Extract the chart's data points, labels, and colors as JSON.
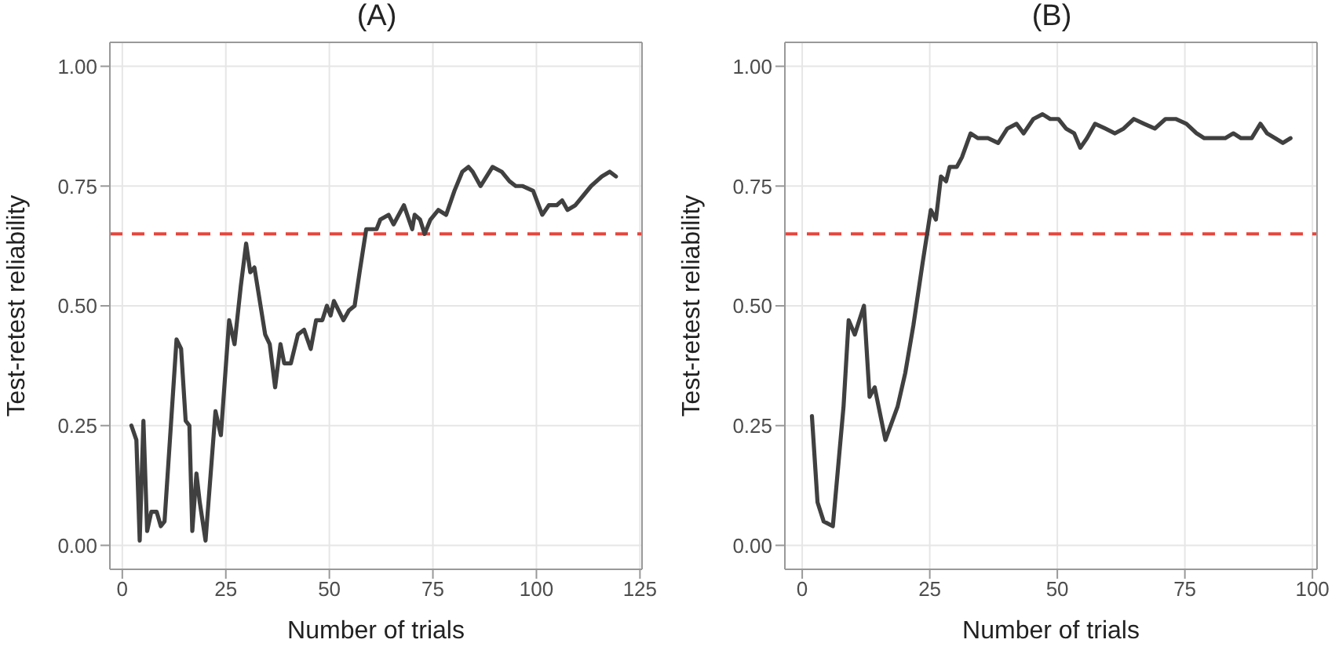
{
  "chart_data": [
    {
      "type": "line",
      "title": "(A)",
      "xlabel": "Number of trials",
      "ylabel": "Test-retest reliability",
      "xlim": [
        -3,
        125.5
      ],
      "ylim": [
        -0.05,
        1.05
      ],
      "xticks": [
        0,
        25,
        50,
        75,
        100,
        125
      ],
      "yticks": [
        {
          "value": 0,
          "label": "0.00"
        },
        {
          "value": 0.25,
          "label": "0.25"
        },
        {
          "value": 0.5,
          "label": "0.50"
        },
        {
          "value": 0.75,
          "label": "0.75"
        },
        {
          "value": 1,
          "label": "1.00"
        }
      ],
      "grid": true,
      "marker": "none",
      "line_style": "solid",
      "ref_lines": [
        {
          "axis": "y",
          "value": 0.65,
          "color": "#e8453c",
          "line_style": "dashed"
        }
      ],
      "series": [
        {
          "color": "#404040",
          "x": [
            2.2,
            3.4,
            4.2,
            5.1,
            6,
            7,
            8.3,
            9.3,
            10.2,
            13.1,
            14.2,
            15.3,
            16.2,
            16.9,
            17.9,
            18.7,
            20.1,
            22.5,
            23.8,
            25.8,
            27.1,
            28.6,
            29.9,
            30.9,
            31.9,
            34.5,
            35.6,
            36.9,
            38.2,
            39.1,
            40.7,
            42.4,
            43.9,
            45.5,
            46.8,
            48.3,
            49.4,
            50.3,
            51.1,
            53.4,
            54.7,
            56.1,
            57.3,
            58.9,
            61.4,
            62.3,
            64.3,
            65.5,
            68,
            70,
            70.6,
            71.9,
            73,
            74.4,
            76.3,
            78.2,
            80.2,
            82.1,
            83.6,
            84.6,
            86.5,
            89.4,
            91.6,
            93.5,
            95,
            96.7,
            99.2,
            101.4,
            103,
            104.9,
            106.2,
            107.5,
            109.4,
            111.3,
            113.2,
            115.8,
            117.7,
            119.2
          ],
          "values": [
            0.25,
            0.22,
            0.01,
            0.26,
            0.03,
            0.07,
            0.07,
            0.04,
            0.05,
            0.43,
            0.41,
            0.26,
            0.25,
            0.03,
            0.15,
            0.09,
            0.01,
            0.28,
            0.23,
            0.47,
            0.42,
            0.54,
            0.63,
            0.57,
            0.58,
            0.44,
            0.42,
            0.33,
            0.42,
            0.38,
            0.38,
            0.44,
            0.45,
            0.41,
            0.47,
            0.47,
            0.5,
            0.48,
            0.51,
            0.47,
            0.49,
            0.5,
            0.57,
            0.66,
            0.66,
            0.68,
            0.69,
            0.67,
            0.71,
            0.66,
            0.69,
            0.68,
            0.65,
            0.68,
            0.7,
            0.69,
            0.74,
            0.78,
            0.79,
            0.78,
            0.75,
            0.79,
            0.78,
            0.76,
            0.75,
            0.75,
            0.74,
            0.69,
            0.71,
            0.71,
            0.72,
            0.7,
            0.71,
            0.73,
            0.75,
            0.77,
            0.78,
            0.77
          ]
        }
      ]
    },
    {
      "type": "line",
      "title": "(B)",
      "xlabel": "Number of trials",
      "ylabel": "Test-retest reliability",
      "xlim": [
        -3.4,
        100.9
      ],
      "ylim": [
        -0.05,
        1.05
      ],
      "xticks": [
        0,
        25,
        50,
        75,
        100
      ],
      "yticks": [
        {
          "value": 0,
          "label": "0.00"
        },
        {
          "value": 0.25,
          "label": "0.25"
        },
        {
          "value": 0.5,
          "label": "0.50"
        },
        {
          "value": 0.75,
          "label": "0.75"
        },
        {
          "value": 1,
          "label": "1.00"
        }
      ],
      "grid": true,
      "marker": "none",
      "line_style": "solid",
      "ref_lines": [
        {
          "axis": "y",
          "value": 0.65,
          "color": "#e8453c",
          "line_style": "dashed"
        }
      ],
      "series": [
        {
          "color": "#404040",
          "x": [
            1.9,
            3,
            4.2,
            6,
            8.1,
            9.1,
            10.3,
            12.1,
            13.2,
            14.2,
            16.3,
            18.7,
            20.2,
            21.8,
            23.6,
            25.2,
            26.2,
            27.2,
            28.2,
            28.9,
            30.3,
            31.3,
            33,
            34.4,
            36.4,
            38.4,
            40.2,
            42,
            43.4,
            45.3,
            47.1,
            48.6,
            50.2,
            51.7,
            53.3,
            54.5,
            55.8,
            57.4,
            59.4,
            61.3,
            63,
            65,
            67,
            69.1,
            71.2,
            73.2,
            75.3,
            77.3,
            78.8,
            80.9,
            82.9,
            84.5,
            86,
            88.1,
            89.8,
            91.1,
            92.7,
            94.2,
            95.7
          ],
          "values": [
            0.27,
            0.09,
            0.05,
            0.04,
            0.29,
            0.47,
            0.44,
            0.5,
            0.31,
            0.33,
            0.22,
            0.29,
            0.36,
            0.46,
            0.59,
            0.7,
            0.68,
            0.77,
            0.76,
            0.79,
            0.79,
            0.81,
            0.86,
            0.85,
            0.85,
            0.84,
            0.87,
            0.88,
            0.86,
            0.89,
            0.9,
            0.89,
            0.89,
            0.87,
            0.86,
            0.83,
            0.85,
            0.88,
            0.87,
            0.86,
            0.87,
            0.89,
            0.88,
            0.87,
            0.89,
            0.89,
            0.88,
            0.86,
            0.85,
            0.85,
            0.85,
            0.86,
            0.85,
            0.85,
            0.88,
            0.86,
            0.85,
            0.84,
            0.85
          ]
        }
      ]
    }
  ]
}
